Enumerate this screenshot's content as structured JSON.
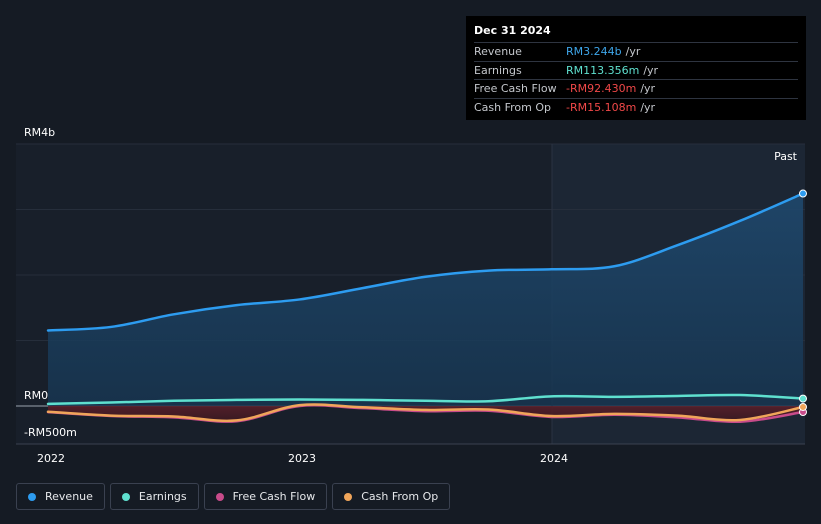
{
  "tooltip": {
    "date": "Dec 31 2024",
    "rows": [
      {
        "label": "Revenue",
        "value": "RM3.244b",
        "unit": "/yr",
        "color": "#3ea6ea"
      },
      {
        "label": "Earnings",
        "value": "RM113.356m",
        "unit": "/yr",
        "color": "#5fe0cf"
      },
      {
        "label": "Free Cash Flow",
        "value": "-RM92.430m",
        "unit": "/yr",
        "color": "#f04848"
      },
      {
        "label": "Cash From Op",
        "value": "-RM15.108m",
        "unit": "/yr",
        "color": "#f04848"
      }
    ]
  },
  "legend": [
    {
      "label": "Revenue",
      "color": "#2d9cf0"
    },
    {
      "label": "Earnings",
      "color": "#5fe0cf"
    },
    {
      "label": "Free Cash Flow",
      "color": "#c84b8a"
    },
    {
      "label": "Cash From Op",
      "color": "#f0a55a"
    }
  ],
  "chart_data": {
    "type": "line",
    "title": "",
    "xlabel": "",
    "ylabel": "",
    "y_tick_labels": [
      "RM4b",
      "RM0",
      "-RM500m"
    ],
    "x_tick_labels": [
      "2022",
      "2023",
      "2024"
    ],
    "past_label": "Past",
    "ylim": [
      -500,
      4000
    ],
    "y_unit": "RM millions",
    "x_unit": "year (decimal)",
    "xlim": [
      2021.87,
      2025.0
    ],
    "series": [
      {
        "name": "Revenue",
        "color": "#2d9cf0",
        "points": [
          [
            2022.0,
            1153
          ],
          [
            2022.25,
            1207
          ],
          [
            2022.5,
            1400
          ],
          [
            2022.75,
            1540
          ],
          [
            2023.0,
            1627
          ],
          [
            2023.25,
            1800
          ],
          [
            2023.5,
            1973
          ],
          [
            2023.75,
            2067
          ],
          [
            2024.0,
            2087
          ],
          [
            2024.25,
            2133
          ],
          [
            2024.5,
            2453
          ],
          [
            2024.75,
            2827
          ],
          [
            2025.0,
            3244
          ]
        ]
      },
      {
        "name": "Earnings",
        "color": "#5fe0cf",
        "points": [
          [
            2022.0,
            33
          ],
          [
            2022.25,
            53
          ],
          [
            2022.5,
            80
          ],
          [
            2022.75,
            93
          ],
          [
            2023.0,
            100
          ],
          [
            2023.25,
            93
          ],
          [
            2023.5,
            80
          ],
          [
            2023.75,
            73
          ],
          [
            2024.0,
            147
          ],
          [
            2024.25,
            140
          ],
          [
            2024.5,
            153
          ],
          [
            2024.75,
            167
          ],
          [
            2025.0,
            113
          ]
        ]
      },
      {
        "name": "Free Cash Flow",
        "color": "#c84b8a",
        "points": [
          [
            2022.0,
            -93
          ],
          [
            2022.25,
            -153
          ],
          [
            2022.5,
            -173
          ],
          [
            2022.75,
            -233
          ],
          [
            2023.0,
            0
          ],
          [
            2023.25,
            -33
          ],
          [
            2023.5,
            -80
          ],
          [
            2023.75,
            -73
          ],
          [
            2024.0,
            -167
          ],
          [
            2024.25,
            -133
          ],
          [
            2024.5,
            -173
          ],
          [
            2024.75,
            -240
          ],
          [
            2025.0,
            -92
          ]
        ]
      },
      {
        "name": "Cash From Op",
        "color": "#f0a55a",
        "points": [
          [
            2022.0,
            -87
          ],
          [
            2022.25,
            -147
          ],
          [
            2022.5,
            -160
          ],
          [
            2022.75,
            -220
          ],
          [
            2023.0,
            13
          ],
          [
            2023.25,
            -20
          ],
          [
            2023.5,
            -60
          ],
          [
            2023.75,
            -53
          ],
          [
            2024.0,
            -153
          ],
          [
            2024.25,
            -120
          ],
          [
            2024.5,
            -147
          ],
          [
            2024.75,
            -213
          ],
          [
            2025.0,
            -15
          ]
        ]
      }
    ]
  }
}
